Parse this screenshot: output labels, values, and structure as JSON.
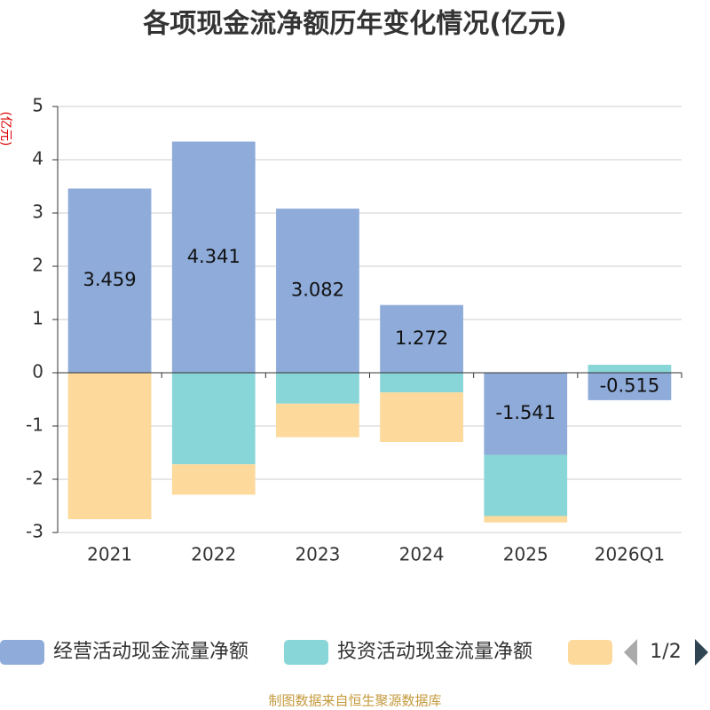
{
  "chart_data": {
    "type": "bar",
    "stacked": true,
    "title": "各项现金流净额历年变化情况(亿元)",
    "y_label": "(亿元)",
    "categories": [
      "2021",
      "2022",
      "2023",
      "2024",
      "2025",
      "2026Q1"
    ],
    "series": [
      {
        "name": "经营活动现金流量净额",
        "color": "#8eabd9",
        "values": [
          3.459,
          4.341,
          3.082,
          1.272,
          -1.541,
          -0.515
        ],
        "show_labels": true
      },
      {
        "name": "投资活动现金流量净额",
        "color": "#88d6d8",
        "values": [
          0,
          -1.72,
          -0.58,
          -0.37,
          -1.15,
          0.15
        ]
      },
      {
        "color": "#fdd99b",
        "values": [
          -2.75,
          -0.57,
          -0.63,
          -0.93,
          -0.12,
          0
        ]
      }
    ],
    "ylim": [
      -3,
      5
    ],
    "yticks": [
      -3,
      -2,
      -1,
      0,
      1,
      2,
      3,
      4,
      5
    ],
    "grid": true,
    "legend_page": "1/2",
    "source": "制图数据来自恒生聚源数据库"
  }
}
